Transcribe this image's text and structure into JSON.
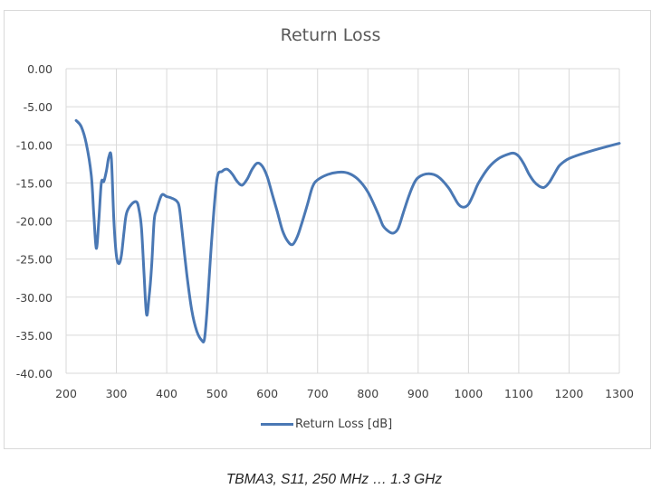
{
  "chart": {
    "title": "Return Loss",
    "legend_label": "Return Loss [dB]",
    "caption": "TBMA3, S11, 250 MHz … 1.3 GHz",
    "line_color": "#4a78b4",
    "grid_color": "#d9d9d9"
  },
  "chart_data": {
    "type": "line",
    "title": "Return Loss",
    "xlabel": "",
    "ylabel": "",
    "xlim": [
      200,
      1300
    ],
    "ylim": [
      -40,
      0
    ],
    "grid": true,
    "legend_position": "bottom",
    "x_ticks": [
      "200",
      "300",
      "400",
      "500",
      "600",
      "700",
      "800",
      "900",
      "1000",
      "1100",
      "1200",
      "1300"
    ],
    "y_ticks": [
      "0.00",
      "-5.00",
      "-10.00",
      "-15.00",
      "-20.00",
      "-25.00",
      "-30.00",
      "-35.00",
      "-40.00"
    ],
    "series": [
      {
        "name": "Return Loss [dB]",
        "x": [
          220,
          230,
          240,
          250,
          255,
          260,
          265,
          270,
          275,
          280,
          285,
          290,
          295,
          300,
          305,
          310,
          315,
          320,
          330,
          340,
          345,
          350,
          355,
          360,
          365,
          370,
          375,
          380,
          390,
          400,
          410,
          420,
          425,
          430,
          440,
          450,
          460,
          470,
          475,
          480,
          490,
          500,
          510,
          520,
          530,
          540,
          550,
          560,
          570,
          580,
          590,
          600,
          610,
          620,
          630,
          640,
          650,
          660,
          670,
          680,
          690,
          700,
          720,
          740,
          760,
          780,
          800,
          820,
          830,
          840,
          850,
          860,
          870,
          880,
          890,
          900,
          920,
          940,
          960,
          970,
          980,
          990,
          1000,
          1010,
          1020,
          1040,
          1060,
          1080,
          1090,
          1100,
          1110,
          1120,
          1130,
          1140,
          1150,
          1160,
          1170,
          1180,
          1190,
          1200,
          1220,
          1250,
          1300
        ],
        "y": [
          -6.8,
          -7.6,
          -9.8,
          -14,
          -19,
          -23.6,
          -20,
          -15,
          -14.8,
          -13.5,
          -11.6,
          -11.8,
          -20,
          -24.5,
          -25.6,
          -24.5,
          -21.5,
          -19,
          -17.8,
          -17.5,
          -18.5,
          -21,
          -27,
          -32.3,
          -30,
          -26,
          -20,
          -18.5,
          -16.6,
          -16.8,
          -17.0,
          -17.4,
          -18.2,
          -21,
          -27,
          -31.8,
          -34.5,
          -35.7,
          -35.5,
          -32,
          -22,
          -14.5,
          -13.5,
          -13.2,
          -13.8,
          -14.8,
          -15.3,
          -14.5,
          -13.2,
          -12.4,
          -12.8,
          -14.2,
          -16.5,
          -18.8,
          -21.2,
          -22.6,
          -23.1,
          -22,
          -20,
          -17.8,
          -15.5,
          -14.6,
          -13.9,
          -13.6,
          -13.7,
          -14.5,
          -16.2,
          -19,
          -20.6,
          -21.3,
          -21.6,
          -21,
          -19,
          -17,
          -15.3,
          -14.3,
          -13.8,
          -14.2,
          -15.6,
          -16.7,
          -17.8,
          -18.2,
          -17.8,
          -16.5,
          -15,
          -13.0,
          -11.8,
          -11.2,
          -11.1,
          -11.5,
          -12.5,
          -13.8,
          -14.8,
          -15.4,
          -15.6,
          -15.0,
          -13.9,
          -12.8,
          -12.2,
          -11.8,
          -11.3,
          -10.7,
          -9.8
        ]
      }
    ]
  }
}
